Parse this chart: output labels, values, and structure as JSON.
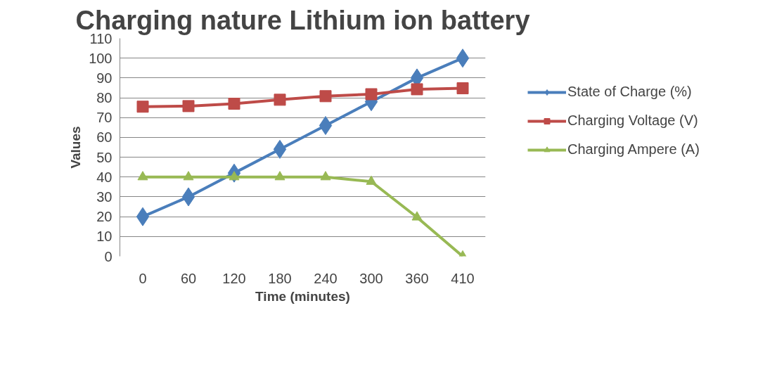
{
  "chart_data": {
    "type": "line",
    "title": "Charging nature Lithium ion battery",
    "xlabel": "Time (minutes)",
    "ylabel": "Values",
    "categories": [
      "0",
      "60",
      "120",
      "180",
      "240",
      "300",
      "360",
      "410"
    ],
    "series": [
      {
        "name": "State of Charge (%)",
        "color": "#4a7ebb",
        "marker": "diamond",
        "values": [
          20,
          30,
          42,
          54,
          66,
          78,
          90,
          100
        ]
      },
      {
        "name": "Charging Voltage (V)",
        "color": "#be4b48",
        "marker": "square",
        "values": [
          75.5,
          75.8,
          77,
          79,
          80.8,
          81.8,
          84.3,
          84.8
        ]
      },
      {
        "name": "Charging Ampere (A)",
        "color": "#98b954",
        "marker": "triangle",
        "values": [
          40,
          40,
          40,
          40,
          40,
          37.7,
          19.7,
          0
        ]
      }
    ],
    "ylim": [
      0,
      110
    ],
    "yticks": [
      0,
      10,
      20,
      30,
      40,
      50,
      60,
      70,
      80,
      90,
      100,
      110
    ],
    "grid": "y",
    "legend": "right"
  }
}
